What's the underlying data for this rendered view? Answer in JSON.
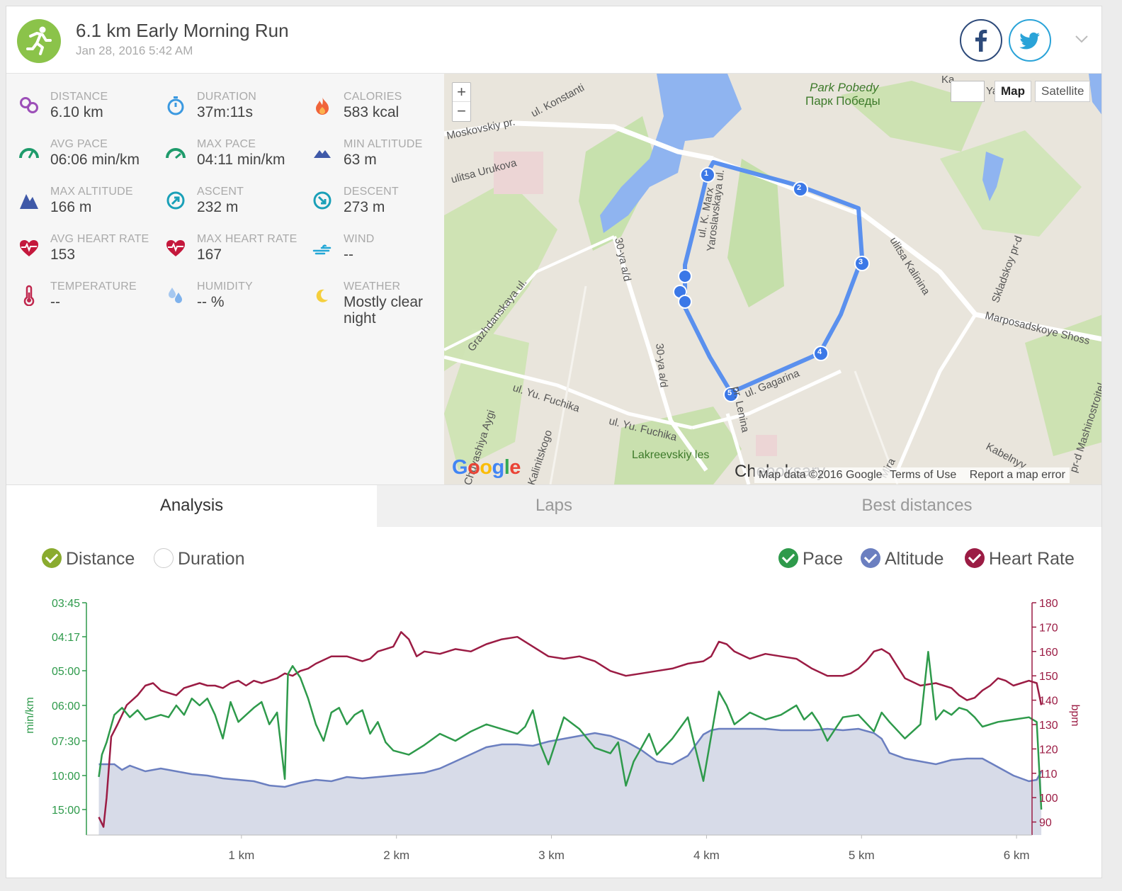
{
  "header": {
    "title": "6.1 km Early Morning Run",
    "date": "Jan 28, 2016 5:42 AM",
    "sport_icon": "running-person-icon",
    "colors": {
      "sport": "#8bc34a",
      "facebook": "#2d4a7a",
      "twitter": "#2aa3d8"
    }
  },
  "stats": [
    {
      "label": "DISTANCE",
      "value": "6.10 km",
      "icon": "location-pins-icon"
    },
    {
      "label": "DURATION",
      "value": "37m:11s",
      "icon": "stopwatch-icon"
    },
    {
      "label": "CALORIES",
      "value": "583 kcal",
      "icon": "flame-icon"
    },
    {
      "label": "AVG PACE",
      "value": "06:06 min/km",
      "icon": "speedometer-icon"
    },
    {
      "label": "MAX PACE",
      "value": "04:11 min/km",
      "icon": "speedometer-icon"
    },
    {
      "label": "MIN ALTITUDE",
      "value": "63 m",
      "icon": "mountain-small-icon"
    },
    {
      "label": "MAX ALTITUDE",
      "value": "166 m",
      "icon": "mountain-large-icon"
    },
    {
      "label": "ASCENT",
      "value": "232 m",
      "icon": "ascent-arrow-icon"
    },
    {
      "label": "DESCENT",
      "value": "273 m",
      "icon": "descent-arrow-icon"
    },
    {
      "label": "AVG HEART RATE",
      "value": "153",
      "icon": "heart-pulse-icon"
    },
    {
      "label": "MAX HEART RATE",
      "value": "167",
      "icon": "heart-pulse-icon"
    },
    {
      "label": "WIND",
      "value": "--",
      "icon": "wind-icon"
    },
    {
      "label": "TEMPERATURE",
      "value": "--",
      "icon": "thermometer-icon"
    },
    {
      "label": "HUMIDITY",
      "value": "-- %",
      "icon": "water-drops-icon"
    },
    {
      "label": "WEATHER",
      "value": "Mostly clear night",
      "icon": "moon-icon"
    }
  ],
  "map": {
    "zoom_in": "+",
    "zoom_out": "−",
    "type_map": "Map",
    "type_satellite": "Satellite",
    "logo": "Google",
    "attribution": [
      "Map data ©2016 Google",
      "Terms of Use",
      "Report a map error"
    ],
    "labels": [
      "ul. Konstanti",
      "Moskovskiy pr.",
      "ulitsa Urukova",
      "Park Pobedy",
      "Парк Победы",
      "Yaroslavskaya ul.",
      "ul. K. Marx",
      "ulitsa Kalinina",
      "Skladskoy pr-d",
      "Marposadskoye Shoss",
      "Grazhdanskaya ul.",
      "30-ya a/d",
      "ul. Yu. Fuchika",
      "ul. Gagarina",
      "pr. Lenina",
      "Lakreevskiy les",
      "Kabelnyy",
      "pr-d Mashinostroitel",
      "Mira",
      "Chuvashiya Aygi",
      "Kalinitskogo",
      "Cheboksary",
      "Ya",
      "Ka"
    ],
    "route_markers": [
      "1",
      "2",
      "3",
      "4",
      "5"
    ]
  },
  "tabs": [
    "Analysis",
    "Laps",
    "Best distances"
  ],
  "toggles": {
    "x_axis": [
      {
        "label": "Distance",
        "checked": true,
        "color": "#8aab2f"
      },
      {
        "label": "Duration",
        "checked": false,
        "color": "#cccccc"
      }
    ],
    "series": [
      {
        "label": "Pace",
        "checked": true,
        "color": "#2e9a4b"
      },
      {
        "label": "Altitude",
        "checked": true,
        "color": "#6b7fc0"
      },
      {
        "label": "Heart Rate",
        "checked": true,
        "color": "#9b1c44"
      }
    ]
  },
  "chart_data": {
    "type": "line",
    "x_unit": "km",
    "x_ticks": [
      "1 km",
      "2 km",
      "3 km",
      "4 km",
      "5 km",
      "6 km"
    ],
    "xlim": [
      0,
      6.1
    ],
    "left_axis": {
      "label": "min/km",
      "ticks": [
        "03:45",
        "04:17",
        "05:00",
        "06:00",
        "07:30",
        "10:00",
        "15:00"
      ],
      "color": "#2e9a4b"
    },
    "right_axis": {
      "label": "bpm",
      "ticks": [
        "180",
        "170",
        "160",
        "150",
        "140",
        "130",
        "120",
        "110",
        "100",
        "90"
      ],
      "lim": [
        80,
        180
      ],
      "color": "#9b1c44"
    },
    "series": [
      {
        "name": "Heart Rate",
        "color": "#9b1c44",
        "x": [
          0.0,
          0.03,
          0.05,
          0.08,
          0.12,
          0.18,
          0.25,
          0.3,
          0.35,
          0.4,
          0.45,
          0.5,
          0.55,
          0.6,
          0.65,
          0.7,
          0.75,
          0.8,
          0.85,
          0.9,
          0.95,
          1.0,
          1.05,
          1.1,
          1.15,
          1.2,
          1.25,
          1.3,
          1.35,
          1.4,
          1.5,
          1.6,
          1.7,
          1.75,
          1.8,
          1.85,
          1.9,
          1.95,
          2.0,
          2.05,
          2.1,
          2.2,
          2.3,
          2.4,
          2.5,
          2.6,
          2.7,
          2.8,
          2.9,
          3.0,
          3.1,
          3.2,
          3.3,
          3.4,
          3.5,
          3.6,
          3.7,
          3.8,
          3.9,
          3.95,
          4.0,
          4.05,
          4.1,
          4.2,
          4.3,
          4.4,
          4.5,
          4.6,
          4.7,
          4.8,
          4.85,
          4.9,
          4.95,
          5.0,
          5.05,
          5.1,
          5.15,
          5.2,
          5.3,
          5.4,
          5.5,
          5.55,
          5.6,
          5.65,
          5.7,
          5.75,
          5.8,
          5.85,
          5.9,
          6.0,
          6.05,
          6.08
        ],
        "values": [
          92,
          88,
          100,
          125,
          130,
          138,
          142,
          146,
          147,
          144,
          143,
          142,
          145,
          146,
          147,
          146,
          146,
          145,
          147,
          148,
          146,
          148,
          147,
          148,
          149,
          151,
          150,
          152,
          153,
          155,
          158,
          158,
          156,
          157,
          160,
          161,
          162,
          168,
          165,
          158,
          160,
          159,
          161,
          160,
          163,
          165,
          166,
          162,
          158,
          157,
          158,
          156,
          152,
          150,
          151,
          152,
          153,
          155,
          156,
          158,
          164,
          163,
          160,
          157,
          159,
          158,
          157,
          153,
          150,
          150,
          151,
          153,
          156,
          160,
          161,
          159,
          154,
          149,
          146,
          147,
          145,
          142,
          140,
          141,
          144,
          146,
          149,
          148,
          146,
          148,
          147,
          138
        ]
      },
      {
        "name": "Pace",
        "color": "#2e9a4b",
        "x": [
          0.0,
          0.02,
          0.05,
          0.1,
          0.15,
          0.2,
          0.25,
          0.3,
          0.35,
          0.4,
          0.45,
          0.5,
          0.55,
          0.6,
          0.65,
          0.7,
          0.75,
          0.8,
          0.85,
          0.9,
          0.95,
          1.0,
          1.05,
          1.1,
          1.15,
          1.2,
          1.22,
          1.25,
          1.3,
          1.35,
          1.4,
          1.45,
          1.5,
          1.55,
          1.6,
          1.65,
          1.7,
          1.75,
          1.8,
          1.85,
          1.9,
          2.0,
          2.1,
          2.2,
          2.3,
          2.4,
          2.5,
          2.6,
          2.7,
          2.75,
          2.8,
          2.85,
          2.9,
          3.0,
          3.1,
          3.2,
          3.3,
          3.35,
          3.4,
          3.45,
          3.5,
          3.55,
          3.6,
          3.7,
          3.8,
          3.9,
          4.0,
          4.05,
          4.1,
          4.2,
          4.3,
          4.4,
          4.5,
          4.55,
          4.6,
          4.65,
          4.7,
          4.8,
          4.9,
          5.0,
          5.05,
          5.1,
          5.2,
          5.3,
          5.35,
          5.4,
          5.45,
          5.5,
          5.55,
          5.6,
          5.65,
          5.7,
          5.8,
          5.9,
          6.0,
          6.05,
          6.08
        ],
        "values": [
          10.2,
          8.5,
          7.6,
          6.4,
          6.1,
          6.5,
          6.2,
          6.6,
          6.5,
          6.4,
          6.5,
          6.0,
          6.4,
          5.8,
          6.0,
          5.8,
          6.4,
          7.4,
          5.9,
          6.7,
          6.4,
          6.1,
          5.9,
          6.8,
          6.3,
          10.5,
          5.1,
          4.9,
          5.2,
          5.8,
          6.8,
          7.5,
          6.3,
          6.1,
          6.8,
          6.4,
          6.2,
          7.2,
          6.7,
          7.6,
          8.2,
          8.5,
          7.8,
          7.2,
          7.5,
          7.1,
          6.8,
          7.0,
          7.2,
          6.9,
          6.2,
          7.8,
          9.2,
          6.5,
          7.0,
          8.0,
          8.4,
          7.6,
          11.5,
          9.0,
          8.0,
          7.2,
          8.5,
          7.4,
          6.5,
          10.8,
          5.6,
          6.0,
          6.8,
          6.3,
          6.6,
          6.4,
          6.0,
          6.6,
          6.3,
          6.8,
          7.5,
          6.5,
          6.4,
          7.1,
          6.3,
          6.7,
          7.4,
          6.8,
          4.6,
          6.6,
          6.2,
          6.4,
          6.1,
          6.2,
          6.5,
          6.9,
          6.7,
          6.6,
          6.5,
          6.7,
          15.0
        ]
      },
      {
        "name": "Altitude",
        "color": "#6b7fc0",
        "fill": "#d7dbe8",
        "x": [
          0.0,
          0.1,
          0.15,
          0.2,
          0.3,
          0.4,
          0.5,
          0.6,
          0.7,
          0.8,
          0.9,
          1.0,
          1.1,
          1.2,
          1.3,
          1.4,
          1.5,
          1.6,
          1.7,
          1.8,
          1.9,
          2.0,
          2.1,
          2.2,
          2.3,
          2.4,
          2.5,
          2.6,
          2.7,
          2.8,
          2.9,
          3.0,
          3.1,
          3.2,
          3.3,
          3.4,
          3.5,
          3.6,
          3.7,
          3.8,
          3.9,
          3.95,
          4.0,
          4.1,
          4.2,
          4.3,
          4.4,
          4.5,
          4.6,
          4.7,
          4.8,
          4.9,
          5.0,
          5.05,
          5.1,
          5.2,
          5.3,
          5.4,
          5.5,
          5.6,
          5.7,
          5.8,
          5.9,
          6.0,
          6.05,
          6.08
        ],
        "values": [
          100,
          100,
          96,
          99,
          95,
          97,
          95,
          93,
          92,
          90,
          89,
          88,
          85,
          84,
          87,
          89,
          88,
          91,
          90,
          91,
          92,
          93,
          94,
          97,
          102,
          107,
          112,
          114,
          114,
          113,
          116,
          118,
          120,
          122,
          120,
          116,
          110,
          102,
          100,
          106,
          121,
          124,
          125,
          125,
          125,
          125,
          124,
          124,
          124,
          125,
          124,
          125,
          122,
          118,
          108,
          104,
          102,
          100,
          103,
          104,
          104,
          98,
          92,
          88,
          89,
          95
        ]
      }
    ]
  }
}
